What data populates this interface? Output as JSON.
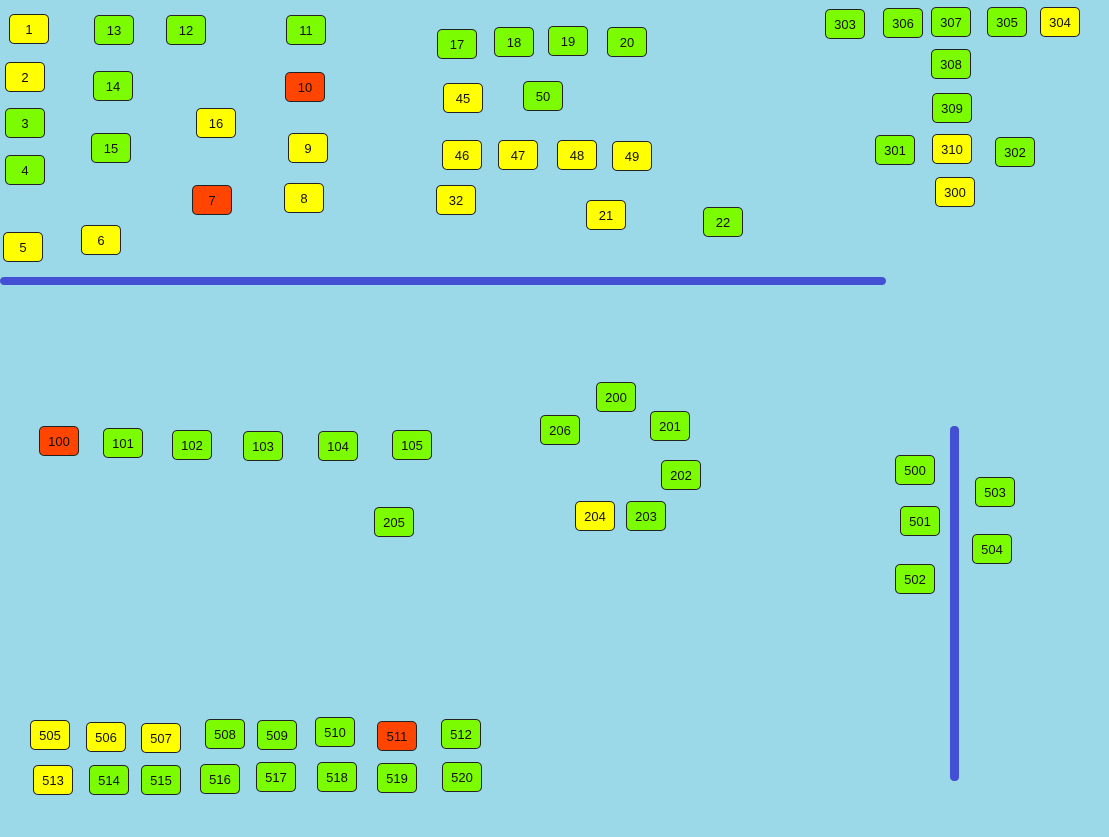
{
  "boxes": [
    {
      "label": "1",
      "color": "#ffff00"
    },
    {
      "label": "13",
      "color": "#7cfc00"
    },
    {
      "label": "12",
      "color": "#7cfc00"
    },
    {
      "label": "11",
      "color": "#7cfc00"
    },
    {
      "label": "2",
      "color": "#ffff00"
    },
    {
      "label": "14",
      "color": "#7cfc00"
    },
    {
      "label": "10",
      "color": "#ff4500"
    },
    {
      "label": "3",
      "color": "#7cfc00"
    },
    {
      "label": "16",
      "color": "#ffff00"
    },
    {
      "label": "15",
      "color": "#7cfc00"
    },
    {
      "label": "9",
      "color": "#ffff00"
    },
    {
      "label": "4",
      "color": "#7cfc00"
    },
    {
      "label": "7",
      "color": "#ff4500"
    },
    {
      "label": "8",
      "color": "#ffff00"
    },
    {
      "label": "5",
      "color": "#ffff00"
    },
    {
      "label": "6",
      "color": "#ffff00"
    },
    {
      "label": "17",
      "color": "#7cfc00"
    },
    {
      "label": "18",
      "color": "#7cfc00"
    },
    {
      "label": "19",
      "color": "#7cfc00"
    },
    {
      "label": "20",
      "color": "#7cfc00"
    },
    {
      "label": "45",
      "color": "#ffff00"
    },
    {
      "label": "50",
      "color": "#7cfc00"
    },
    {
      "label": "46",
      "color": "#ffff00"
    },
    {
      "label": "47",
      "color": "#ffff00"
    },
    {
      "label": "48",
      "color": "#ffff00"
    },
    {
      "label": "49",
      "color": "#ffff00"
    },
    {
      "label": "32",
      "color": "#ffff00"
    },
    {
      "label": "21",
      "color": "#ffff00"
    },
    {
      "label": "22",
      "color": "#7cfc00"
    },
    {
      "label": "303",
      "color": "#7cfc00"
    },
    {
      "label": "306",
      "color": "#7cfc00"
    },
    {
      "label": "307",
      "color": "#7cfc00"
    },
    {
      "label": "305",
      "color": "#7cfc00"
    },
    {
      "label": "304",
      "color": "#ffff00"
    },
    {
      "label": "308",
      "color": "#7cfc00"
    },
    {
      "label": "309",
      "color": "#7cfc00"
    },
    {
      "label": "301",
      "color": "#7cfc00"
    },
    {
      "label": "310",
      "color": "#ffff00"
    },
    {
      "label": "302",
      "color": "#7cfc00"
    },
    {
      "label": "300",
      "color": "#ffff00"
    },
    {
      "label": "100",
      "color": "#ff4500"
    },
    {
      "label": "101",
      "color": "#7cfc00"
    },
    {
      "label": "102",
      "color": "#7cfc00"
    },
    {
      "label": "103",
      "color": "#7cfc00"
    },
    {
      "label": "104",
      "color": "#7cfc00"
    },
    {
      "label": "105",
      "color": "#7cfc00"
    },
    {
      "label": "205",
      "color": "#7cfc00"
    },
    {
      "label": "200",
      "color": "#7cfc00"
    },
    {
      "label": "206",
      "color": "#7cfc00"
    },
    {
      "label": "201",
      "color": "#7cfc00"
    },
    {
      "label": "202",
      "color": "#7cfc00"
    },
    {
      "label": "204",
      "color": "#ffff00"
    },
    {
      "label": "203",
      "color": "#7cfc00"
    },
    {
      "label": "500",
      "color": "#7cfc00"
    },
    {
      "label": "501",
      "color": "#7cfc00"
    },
    {
      "label": "502",
      "color": "#7cfc00"
    },
    {
      "label": "503",
      "color": "#7cfc00"
    },
    {
      "label": "504",
      "color": "#7cfc00"
    },
    {
      "label": "505",
      "color": "#ffff00"
    },
    {
      "label": "506",
      "color": "#ffff00"
    },
    {
      "label": "507",
      "color": "#ffff00"
    },
    {
      "label": "508",
      "color": "#7cfc00"
    },
    {
      "label": "509",
      "color": "#7cfc00"
    },
    {
      "label": "510",
      "color": "#7cfc00"
    },
    {
      "label": "511",
      "color": "#ff4500"
    },
    {
      "label": "512",
      "color": "#7cfc00"
    },
    {
      "label": "513",
      "color": "#ffff00"
    },
    {
      "label": "514",
      "color": "#7cfc00"
    },
    {
      "label": "515",
      "color": "#7cfc00"
    },
    {
      "label": "516",
      "color": "#7cfc00"
    },
    {
      "label": "517",
      "color": "#7cfc00"
    },
    {
      "label": "518",
      "color": "#7cfc00"
    },
    {
      "label": "519",
      "color": "#7cfc00"
    },
    {
      "label": "520",
      "color": "#7cfc00"
    }
  ]
}
